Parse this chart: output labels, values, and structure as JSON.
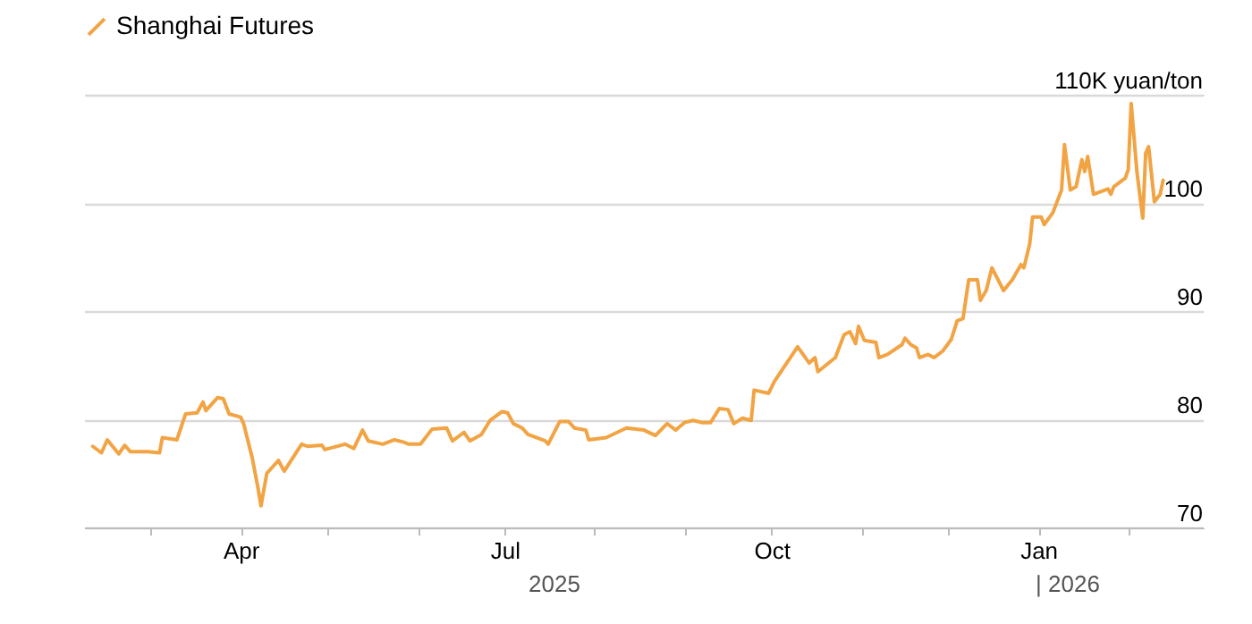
{
  "chart_data": {
    "type": "line",
    "x": [
      "2025-02-09",
      "2025-02-12",
      "2025-02-14",
      "2025-02-18",
      "2025-02-20",
      "2025-02-22",
      "2025-02-28",
      "2025-03-04",
      "2025-03-05",
      "2025-03-10",
      "2025-03-13",
      "2025-03-17",
      "2025-03-19",
      "2025-03-20",
      "2025-03-24",
      "2025-03-26",
      "2025-03-28",
      "2025-04-01",
      "2025-04-02",
      "2025-04-05",
      "2025-04-07",
      "2025-04-08",
      "2025-04-10",
      "2025-04-14",
      "2025-04-16",
      "2025-04-22",
      "2025-04-24",
      "2025-04-29",
      "2025-04-30",
      "2025-05-07",
      "2025-05-10",
      "2025-05-13",
      "2025-05-15",
      "2025-05-20",
      "2025-05-24",
      "2025-05-27",
      "2025-05-29",
      "2025-06-02",
      "2025-06-06",
      "2025-06-11",
      "2025-06-13",
      "2025-06-17",
      "2025-06-19",
      "2025-06-23",
      "2025-06-26",
      "2025-06-30",
      "2025-07-02",
      "2025-07-04",
      "2025-07-07",
      "2025-07-09",
      "2025-07-15",
      "2025-07-16",
      "2025-07-20",
      "2025-07-23",
      "2025-07-25",
      "2025-07-29",
      "2025-07-30",
      "2025-08-05",
      "2025-08-12",
      "2025-08-18",
      "2025-08-22",
      "2025-08-26",
      "2025-08-29",
      "2025-09-01",
      "2025-09-04",
      "2025-09-07",
      "2025-09-10",
      "2025-09-13",
      "2025-09-16",
      "2025-09-18",
      "2025-09-21",
      "2025-09-24",
      "2025-09-25",
      "2025-09-30",
      "2025-10-02",
      "2025-10-10",
      "2025-10-14",
      "2025-10-16",
      "2025-10-17",
      "2025-10-23",
      "2025-10-26",
      "2025-10-28",
      "2025-10-30",
      "2025-10-31",
      "2025-11-02",
      "2025-11-06",
      "2025-11-07",
      "2025-11-10",
      "2025-11-15",
      "2025-11-16",
      "2025-11-18",
      "2025-11-20",
      "2025-11-21",
      "2025-11-24",
      "2025-11-26",
      "2025-11-29",
      "2025-12-02",
      "2025-12-04",
      "2025-12-06",
      "2025-12-08",
      "2025-12-11",
      "2025-12-12",
      "2025-12-14",
      "2025-12-16",
      "2025-12-20",
      "2025-12-23",
      "2025-12-26",
      "2025-12-27",
      "2025-12-29",
      "2025-12-30",
      "2026-01-02",
      "2026-01-03",
      "2026-01-06",
      "2026-01-09",
      "2026-01-10",
      "2026-01-12",
      "2026-01-14",
      "2026-01-16",
      "2026-01-17",
      "2026-01-18",
      "2026-01-20",
      "2026-01-25",
      "2026-01-26",
      "2026-01-27",
      "2026-01-31",
      "2026-02-01",
      "2026-02-02",
      "2026-02-04",
      "2026-02-06",
      "2026-02-07",
      "2026-02-08",
      "2026-02-10",
      "2026-02-12",
      "2026-02-13"
    ],
    "series": [
      {
        "name": "Shanghai Futures",
        "color": "#f2a444",
        "values": [
          77.5,
          76.9,
          78.1,
          76.8,
          77.6,
          77.0,
          77.0,
          76.9,
          78.3,
          78.1,
          80.5,
          80.6,
          81.6,
          80.8,
          82.0,
          81.9,
          80.5,
          80.2,
          79.6,
          76.4,
          73.6,
          72.0,
          75.0,
          76.2,
          75.2,
          77.7,
          77.5,
          77.6,
          77.2,
          77.7,
          77.3,
          79.0,
          78.0,
          77.7,
          78.1,
          77.9,
          77.7,
          77.7,
          79.1,
          79.2,
          78.0,
          78.8,
          78.0,
          78.6,
          79.9,
          80.7,
          80.6,
          79.6,
          79.2,
          78.6,
          78.0,
          77.7,
          79.8,
          79.8,
          79.2,
          79.0,
          78.1,
          78.3,
          79.2,
          79.0,
          78.5,
          79.6,
          79.0,
          79.7,
          79.9,
          79.7,
          79.7,
          81.0,
          80.9,
          79.6,
          80.1,
          79.9,
          82.7,
          82.4,
          83.5,
          86.7,
          85.2,
          85.7,
          84.4,
          85.7,
          87.8,
          88.1,
          87.0,
          88.6,
          87.3,
          87.1,
          85.7,
          86.0,
          86.9,
          87.5,
          86.9,
          86.6,
          85.7,
          86.0,
          85.7,
          86.3,
          87.4,
          89.1,
          89.3,
          92.9,
          92.9,
          91.0,
          91.9,
          94.0,
          91.9,
          92.9,
          94.3,
          94.0,
          96.2,
          98.7,
          98.7,
          98.0,
          99.1,
          101.2,
          105.4,
          101.2,
          101.5,
          104.0,
          102.9,
          104.3,
          100.8,
          101.3,
          100.8,
          101.5,
          102.3,
          103.1,
          109.2,
          102.8,
          98.6,
          104.6,
          105.2,
          100.1,
          100.8,
          102.1
        ]
      }
    ],
    "xlim": [
      "2025-02-06",
      "2026-02-27"
    ],
    "xticks": [
      {
        "value": "2025-03-01",
        "label": null
      },
      {
        "value": "2025-04-01",
        "label": "Apr"
      },
      {
        "value": "2025-05-01",
        "label": null
      },
      {
        "value": "2025-06-01",
        "label": null
      },
      {
        "value": "2025-07-01",
        "label": "Jul"
      },
      {
        "value": "2025-08-01",
        "label": null
      },
      {
        "value": "2025-09-01",
        "label": null
      },
      {
        "value": "2025-10-01",
        "label": "Oct"
      },
      {
        "value": "2025-11-01",
        "label": null
      },
      {
        "value": "2025-12-01",
        "label": null
      },
      {
        "value": "2026-01-01",
        "label": "Jan"
      },
      {
        "value": "2026-02-01",
        "label": null
      }
    ],
    "ylim": [
      70,
      110
    ],
    "yticks": [
      70,
      80,
      90,
      100,
      {
        "value": 110,
        "label": "110K yuan/ton"
      }
    ],
    "grid": "y",
    "legend": "top left",
    "annotations": [
      "2025",
      "| 2026"
    ]
  }
}
